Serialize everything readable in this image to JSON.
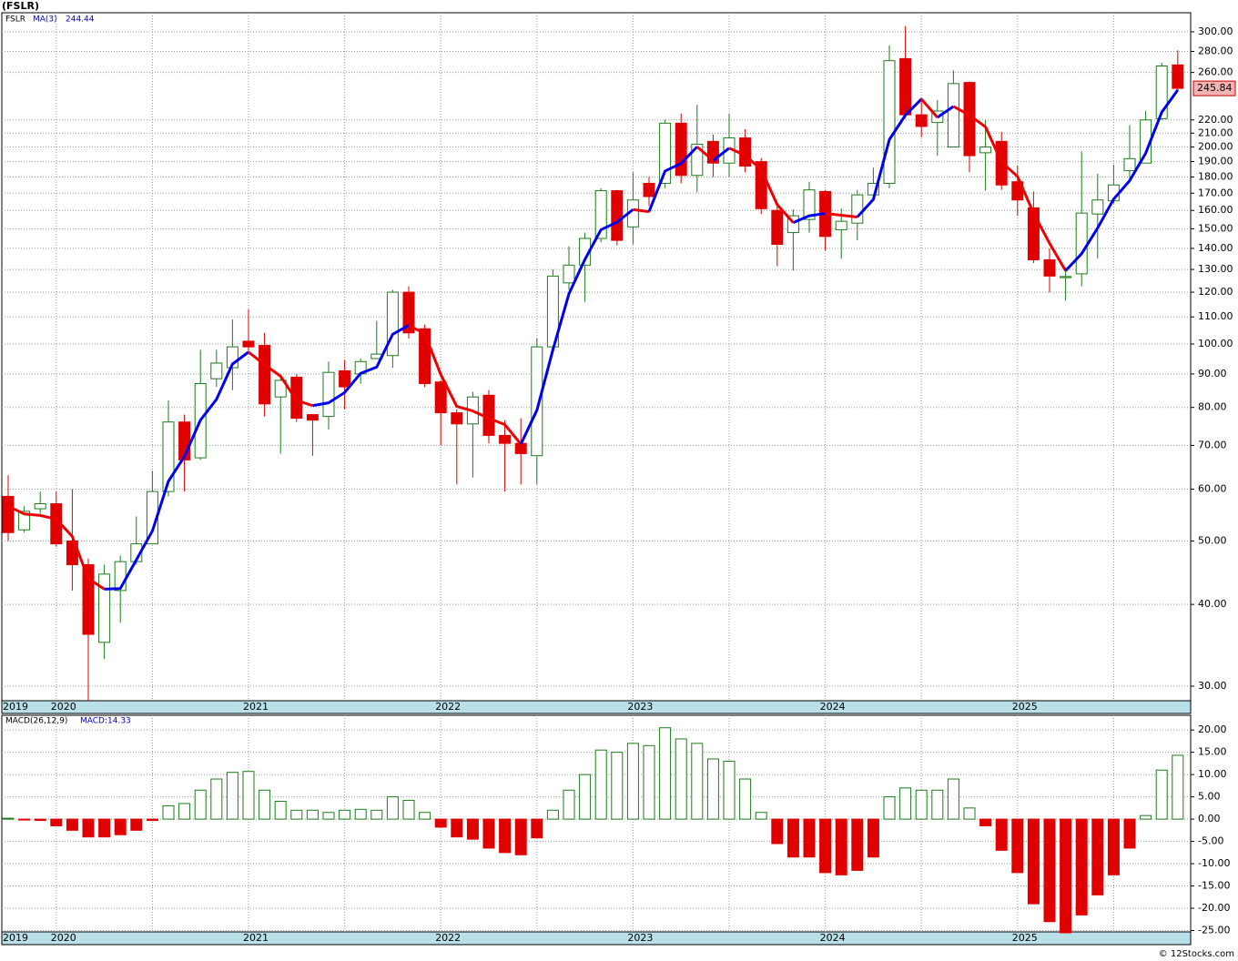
{
  "chart_data": [
    {
      "type": "candlestick",
      "title": "(FSLR)",
      "symbol": "FSLR",
      "log_scale": true,
      "grid": true,
      "up_color": "#1f7a1f",
      "down_color": "#e00000",
      "categories": [
        "2019",
        null,
        null,
        "2020",
        null,
        null,
        null,
        null,
        null,
        null,
        null,
        null,
        null,
        null,
        null,
        "2021",
        null,
        null,
        null,
        null,
        null,
        null,
        null,
        null,
        null,
        null,
        null,
        "2022",
        null,
        null,
        null,
        null,
        null,
        null,
        null,
        null,
        null,
        null,
        null,
        "2023",
        null,
        null,
        null,
        null,
        null,
        null,
        null,
        null,
        null,
        null,
        null,
        "2024",
        null,
        null,
        null,
        null,
        null,
        null,
        null,
        null,
        null,
        null,
        null,
        "2025",
        null,
        null,
        null,
        null,
        null,
        null,
        null,
        null,
        null,
        null
      ],
      "open": [
        58.5,
        52,
        56,
        57,
        50,
        46,
        35,
        42,
        46.5,
        49.5,
        59.5,
        76,
        67,
        88.5,
        92,
        101,
        99.5,
        83,
        89,
        78,
        77.5,
        91,
        90,
        95,
        96,
        120,
        105.5,
        87.5,
        78.5,
        75.5,
        83.5,
        72.5,
        70.5,
        67.5,
        99,
        124,
        132,
        145,
        171.5,
        151,
        176,
        176,
        217.5,
        181,
        204,
        189,
        206.5,
        190,
        160,
        148,
        155,
        171,
        149.5,
        153,
        169,
        176,
        273,
        224,
        218,
        200,
        251,
        196,
        204,
        177,
        161.5,
        134.5,
        126.3,
        128,
        158,
        165.5,
        184,
        189,
        221,
        267
      ],
      "high": [
        63,
        56.5,
        59.5,
        59.5,
        60,
        47,
        46,
        47.5,
        54.5,
        64,
        82,
        78,
        98,
        98,
        109,
        113,
        104,
        89,
        90,
        78,
        94,
        94.5,
        95,
        108.5,
        121,
        122.5,
        107,
        88,
        79.5,
        84.5,
        85,
        76.5,
        77,
        102,
        130,
        141,
        148,
        173,
        172,
        183,
        180,
        220,
        225,
        232,
        209,
        225,
        213,
        192.5,
        163,
        160.5,
        177,
        172,
        161,
        172,
        186,
        286,
        306,
        238,
        236,
        262,
        252,
        220,
        211,
        187.5,
        171,
        140,
        131,
        197,
        182,
        188,
        216,
        227,
        269,
        281
      ],
      "low": [
        50,
        51.5,
        55,
        49,
        42,
        28.5,
        33,
        37.5,
        46,
        49.5,
        58.5,
        59.5,
        66.5,
        86,
        85,
        97.5,
        77.5,
        68,
        76,
        67.5,
        74,
        79.5,
        87,
        95,
        92,
        102,
        86,
        70,
        61,
        62.5,
        70.5,
        59.5,
        61,
        61,
        97.5,
        121,
        116,
        143,
        141.5,
        142,
        162.5,
        173,
        176,
        170.5,
        180,
        180,
        183,
        158,
        131.5,
        129.5,
        148,
        139,
        135,
        144,
        166,
        173,
        221,
        207,
        194,
        200,
        183,
        171.5,
        172,
        157,
        133,
        120,
        116.5,
        122.5,
        135,
        164,
        178.5,
        189,
        220,
        244
      ],
      "close": [
        51.5,
        55.5,
        57,
        49.5,
        46,
        36,
        44.5,
        46.5,
        49.5,
        59.5,
        76,
        66.5,
        87,
        93.5,
        99,
        99,
        81,
        88,
        77,
        76.5,
        90.5,
        86,
        94,
        96.5,
        120,
        104,
        87,
        78.5,
        75.5,
        83,
        72.5,
        70.5,
        68,
        99,
        127,
        132,
        145,
        171.5,
        144,
        166,
        168,
        217.5,
        181,
        202,
        189,
        206.5,
        187,
        161,
        142,
        157,
        172,
        146,
        154,
        169,
        176,
        271,
        224,
        215,
        227,
        250,
        194,
        200,
        175,
        166,
        134.5,
        127,
        126.8,
        158.5,
        166,
        175,
        192,
        220,
        266,
        245.84
      ],
      "ma": {
        "name": "MA(3)",
        "rising_color": "#0000ee",
        "falling_color": "#ee0000",
        "values": [
          56.5,
          55,
          54.7,
          54,
          50.8,
          43.8,
          42.2,
          42.3,
          46.8,
          51.8,
          61.7,
          67.3,
          76.5,
          82.3,
          93.2,
          97.2,
          93,
          89.3,
          82,
          80.5,
          81.3,
          84.3,
          90.2,
          92.2,
          103.5,
          106.8,
          103.7,
          89.8,
          80.3,
          79,
          77,
          75.3,
          70.3,
          79.2,
          98,
          119.3,
          134.7,
          149.5,
          153.5,
          160.5,
          159.3,
          183.8,
          188.8,
          200.2,
          190.7,
          199.2,
          194.2,
          184.8,
          163.3,
          153.3,
          157,
          158.3,
          157.3,
          156.3,
          166.3,
          205.3,
          223.7,
          236.7,
          222,
          230.7,
          223.7,
          214.7,
          189.7,
          180.3,
          158.5,
          142.5,
          129.4,
          137.4,
          150.4,
          166.5,
          177.7,
          195.7,
          226,
          244.44
        ]
      },
      "ylim": [
        28.5,
        320.8
      ],
      "yticks": [
        {
          "value": 30,
          "label": "30.00"
        },
        {
          "value": 40,
          "label": "40.00"
        },
        {
          "value": 50,
          "label": "50.00"
        },
        {
          "value": 60,
          "label": "60.00"
        },
        {
          "value": 70,
          "label": "70.00"
        },
        {
          "value": 80,
          "label": "80.00"
        },
        {
          "value": 90,
          "label": "90.00"
        },
        {
          "value": 100,
          "label": "100.00"
        },
        {
          "value": 110,
          "label": "110.00"
        },
        {
          "value": 120,
          "label": "120.00"
        },
        {
          "value": 130,
          "label": "130.00"
        },
        {
          "value": 140,
          "label": "140.00"
        },
        {
          "value": 150,
          "label": "150.00"
        },
        {
          "value": 160,
          "label": "160.00"
        },
        {
          "value": 170,
          "label": "170.00"
        },
        {
          "value": 180,
          "label": "180.00"
        },
        {
          "value": 190,
          "label": "190.00"
        },
        {
          "value": 200,
          "label": "200.00"
        },
        {
          "value": 210,
          "label": "210.00"
        },
        {
          "value": 220,
          "label": "220.00"
        },
        {
          "value": 260,
          "label": "260.00"
        },
        {
          "value": 280,
          "label": "280.00"
        },
        {
          "value": 300,
          "label": "300.00"
        }
      ]
    },
    {
      "type": "histogram-bar",
      "title": "MACD(26,12,9)",
      "value_name": "MACD:",
      "grid": true,
      "up_color": "#1f7a1f",
      "down_color": "#e00000",
      "values": [
        0.2,
        -0.2,
        -0.3,
        -1.5,
        -2.5,
        -4,
        -4,
        -3.5,
        -2.5,
        -0.3,
        3,
        3.5,
        6.5,
        9,
        10.5,
        10.7,
        6.5,
        4,
        2,
        2,
        1.5,
        2,
        2.2,
        2,
        5,
        4.2,
        1.5,
        -1.8,
        -4,
        -4.5,
        -6.5,
        -7.5,
        -8,
        -4.2,
        2,
        6.5,
        10,
        15.5,
        15,
        17,
        16.5,
        20.5,
        18,
        17,
        13.5,
        13,
        9,
        1.5,
        -5.5,
        -8.5,
        -8.5,
        -12,
        -12.5,
        -11.5,
        -8.5,
        5,
        7,
        6.5,
        6.5,
        9,
        2.5,
        -1.5,
        -7,
        -12,
        -19,
        -23,
        -25.5,
        -21.5,
        -17,
        -12.5,
        -6.5,
        0.8,
        11,
        14.33
      ],
      "ylim": [
        -25.3,
        23.3
      ],
      "yticks": [
        {
          "value": 20,
          "label": "20.00"
        },
        {
          "value": 15,
          "label": "15.00"
        },
        {
          "value": 10,
          "label": "10.00"
        },
        {
          "value": 5,
          "label": "5.00"
        },
        {
          "value": 0,
          "label": "0.00"
        },
        {
          "value": -5,
          "label": "-5.00"
        },
        {
          "value": -10,
          "label": "-10.00"
        },
        {
          "value": -15,
          "label": "-15.00"
        },
        {
          "value": -20,
          "label": "-20.00"
        },
        {
          "value": -25,
          "label": "-25.00"
        }
      ]
    }
  ],
  "footer": "© 12Stocks.com"
}
